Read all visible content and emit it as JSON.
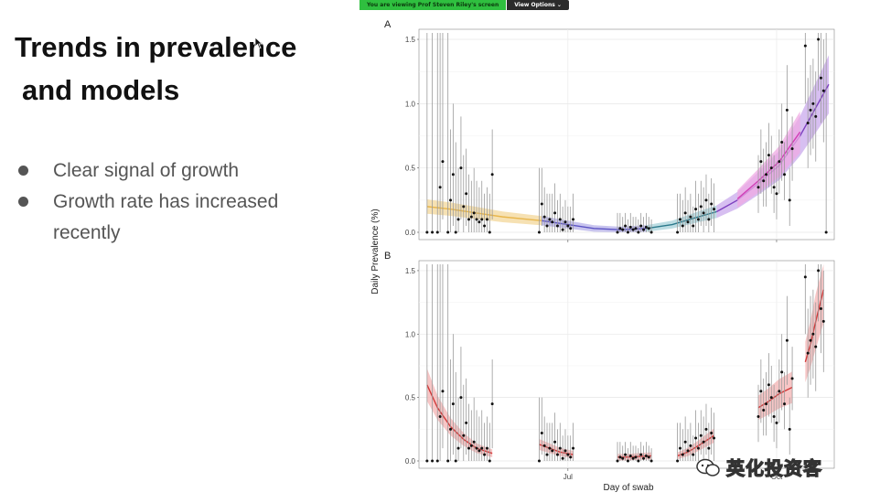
{
  "zoom": {
    "sharing_text": "You are viewing Prof Steven Riley's screen",
    "view_options_label": "View Options ⌄"
  },
  "slide": {
    "title_line1": "Trends in prevalence",
    "title_line2": "and models",
    "bullets": [
      "Clear signal of growth",
      "Growth rate has increased recently"
    ]
  },
  "watermark": {
    "text": "英化投资客"
  },
  "chart_data": [
    {
      "type": "scatter",
      "panel": "A",
      "title": "",
      "xlabel": "Day of swab",
      "ylabel": "Daily Prevalence (%)",
      "ylim": [
        0,
        1.55
      ],
      "yticks": [
        "0.0",
        "0.5",
        "1.0",
        "1.5"
      ],
      "xticks": [
        "Jul",
        "Oct"
      ],
      "x_range_days": [
        0,
        155
      ],
      "x_tick_days": [
        55,
        135
      ],
      "grid": true,
      "points": [
        [
          1,
          0.0,
          0.0,
          1.55
        ],
        [
          3,
          0.0,
          0.0,
          1.55
        ],
        [
          5,
          0.0,
          0.0,
          1.55
        ],
        [
          6,
          0.35,
          0.0,
          1.55
        ],
        [
          7,
          0.55,
          0.1,
          1.55
        ],
        [
          9,
          0.0,
          0.0,
          1.55
        ],
        [
          10,
          0.25,
          0.0,
          0.8
        ],
        [
          11,
          0.45,
          0.05,
          1.0
        ],
        [
          12,
          0.0,
          0.0,
          0.7
        ],
        [
          13,
          0.1,
          0.0,
          0.5
        ],
        [
          14,
          0.5,
          0.1,
          0.9
        ],
        [
          15,
          0.2,
          0.0,
          0.6
        ],
        [
          16,
          0.3,
          0.05,
          0.65
        ],
        [
          17,
          0.1,
          0.0,
          0.45
        ],
        [
          18,
          0.12,
          0.0,
          0.4
        ],
        [
          19,
          0.15,
          0.0,
          0.5
        ],
        [
          20,
          0.1,
          0.0,
          0.4
        ],
        [
          21,
          0.08,
          0.0,
          0.35
        ],
        [
          22,
          0.1,
          0.0,
          0.4
        ],
        [
          23,
          0.05,
          0.0,
          0.3
        ],
        [
          24,
          0.1,
          0.0,
          0.35
        ],
        [
          25,
          0.0,
          0.0,
          0.3
        ],
        [
          26,
          0.45,
          0.1,
          0.8
        ],
        [
          44,
          0.0,
          0.0,
          0.5
        ],
        [
          45,
          0.22,
          0.05,
          0.5
        ],
        [
          46,
          0.12,
          0.0,
          0.35
        ],
        [
          47,
          0.05,
          0.0,
          0.3
        ],
        [
          48,
          0.1,
          0.0,
          0.3
        ],
        [
          49,
          0.08,
          0.0,
          0.3
        ],
        [
          50,
          0.15,
          0.0,
          0.38
        ],
        [
          51,
          0.05,
          0.0,
          0.25
        ],
        [
          52,
          0.1,
          0.0,
          0.3
        ],
        [
          53,
          0.02,
          0.0,
          0.2
        ],
        [
          54,
          0.08,
          0.0,
          0.25
        ],
        [
          55,
          0.05,
          0.0,
          0.2
        ],
        [
          56,
          0.03,
          0.0,
          0.2
        ],
        [
          57,
          0.1,
          0.0,
          0.3
        ],
        [
          74,
          0.0,
          0.0,
          0.15
        ],
        [
          75,
          0.03,
          0.0,
          0.15
        ],
        [
          76,
          0.02,
          0.0,
          0.12
        ],
        [
          77,
          0.05,
          0.0,
          0.15
        ],
        [
          78,
          0.0,
          0.0,
          0.1
        ],
        [
          79,
          0.04,
          0.0,
          0.15
        ],
        [
          80,
          0.02,
          0.0,
          0.12
        ],
        [
          81,
          0.03,
          0.0,
          0.12
        ],
        [
          82,
          0.0,
          0.0,
          0.1
        ],
        [
          83,
          0.05,
          0.0,
          0.15
        ],
        [
          84,
          0.02,
          0.0,
          0.12
        ],
        [
          85,
          0.04,
          0.0,
          0.15
        ],
        [
          86,
          0.03,
          0.0,
          0.12
        ],
        [
          87,
          0.0,
          0.0,
          0.1
        ],
        [
          97,
          0.0,
          0.0,
          0.3
        ],
        [
          98,
          0.1,
          0.0,
          0.3
        ],
        [
          99,
          0.05,
          0.0,
          0.25
        ],
        [
          100,
          0.15,
          0.0,
          0.35
        ],
        [
          101,
          0.08,
          0.0,
          0.25
        ],
        [
          102,
          0.12,
          0.0,
          0.3
        ],
        [
          103,
          0.05,
          0.0,
          0.2
        ],
        [
          104,
          0.18,
          0.0,
          0.4
        ],
        [
          105,
          0.1,
          0.0,
          0.3
        ],
        [
          106,
          0.2,
          0.05,
          0.4
        ],
        [
          107,
          0.15,
          0.0,
          0.35
        ],
        [
          108,
          0.25,
          0.05,
          0.45
        ],
        [
          109,
          0.1,
          0.0,
          0.3
        ],
        [
          110,
          0.22,
          0.05,
          0.42
        ],
        [
          111,
          0.18,
          0.0,
          0.38
        ],
        [
          128,
          0.35,
          0.15,
          0.6
        ],
        [
          129,
          0.55,
          0.3,
          0.8
        ],
        [
          130,
          0.4,
          0.2,
          0.65
        ],
        [
          131,
          0.45,
          0.2,
          0.7
        ],
        [
          132,
          0.6,
          0.35,
          0.85
        ],
        [
          133,
          0.5,
          0.3,
          0.75
        ],
        [
          134,
          0.35,
          0.15,
          0.6
        ],
        [
          135,
          0.3,
          0.1,
          0.55
        ],
        [
          136,
          0.55,
          0.3,
          0.8
        ],
        [
          137,
          0.7,
          0.4,
          1.0
        ],
        [
          138,
          0.45,
          0.25,
          0.7
        ],
        [
          139,
          0.95,
          0.6,
          1.3
        ],
        [
          140,
          0.25,
          0.05,
          0.5
        ],
        [
          141,
          0.65,
          0.4,
          0.9
        ],
        [
          146,
          1.45,
          1.0,
          1.55
        ],
        [
          147,
          0.85,
          0.5,
          1.2
        ],
        [
          148,
          0.95,
          0.6,
          1.3
        ],
        [
          149,
          1.0,
          0.65,
          1.35
        ],
        [
          150,
          0.9,
          0.55,
          1.25
        ],
        [
          151,
          1.5,
          1.1,
          1.55
        ],
        [
          152,
          1.2,
          0.85,
          1.55
        ],
        [
          153,
          1.1,
          0.7,
          1.5
        ],
        [
          154,
          0.0,
          0.0,
          1.55
        ]
      ],
      "fit_segments": [
        {
          "color": "#e8b64c",
          "band": "#f3d79a",
          "x": [
            1,
            10,
            20,
            30,
            40,
            45
          ],
          "y": [
            0.2,
            0.18,
            0.15,
            0.12,
            0.1,
            0.09
          ]
        },
        {
          "color": "#5b53c4",
          "band": "#b5b0e8",
          "x": [
            45,
            55,
            65,
            75,
            85
          ],
          "y": [
            0.09,
            0.06,
            0.03,
            0.02,
            0.03
          ]
        },
        {
          "color": "#2c7a8c",
          "band": "#a7d2da",
          "x": [
            85,
            95,
            105,
            112
          ],
          "y": [
            0.03,
            0.06,
            0.12,
            0.16
          ]
        },
        {
          "color": "#7d3fbf",
          "band": "#caa9ec",
          "x": [
            112,
            120,
            128,
            136,
            144,
            155
          ],
          "y": [
            0.16,
            0.25,
            0.38,
            0.52,
            0.75,
            1.15
          ]
        },
        {
          "color": "#d13fb7",
          "band": "#efa9e3",
          "x": [
            120,
            128,
            136,
            144
          ],
          "y": [
            0.26,
            0.4,
            0.55,
            0.78
          ]
        }
      ]
    },
    {
      "type": "scatter",
      "panel": "B",
      "title": "",
      "xlabel": "Day of swab",
      "ylabel": "Daily Prevalence (%)",
      "ylim": [
        0,
        1.55
      ],
      "yticks": [
        "0.0",
        "0.5",
        "1.0",
        "1.5"
      ],
      "xticks": [
        "Jul",
        "Oct"
      ],
      "x_range_days": [
        0,
        155
      ],
      "x_tick_days": [
        55,
        135
      ],
      "grid": true,
      "points": [
        [
          1,
          0.0,
          0.0,
          1.55
        ],
        [
          3,
          0.0,
          0.0,
          1.55
        ],
        [
          5,
          0.0,
          0.0,
          1.55
        ],
        [
          6,
          0.35,
          0.0,
          1.55
        ],
        [
          7,
          0.55,
          0.1,
          1.55
        ],
        [
          9,
          0.0,
          0.0,
          1.55
        ],
        [
          10,
          0.25,
          0.0,
          0.8
        ],
        [
          11,
          0.45,
          0.05,
          1.0
        ],
        [
          12,
          0.0,
          0.0,
          0.7
        ],
        [
          13,
          0.1,
          0.0,
          0.5
        ],
        [
          14,
          0.5,
          0.1,
          0.9
        ],
        [
          15,
          0.2,
          0.0,
          0.6
        ],
        [
          16,
          0.3,
          0.05,
          0.65
        ],
        [
          17,
          0.1,
          0.0,
          0.45
        ],
        [
          18,
          0.12,
          0.0,
          0.4
        ],
        [
          19,
          0.15,
          0.0,
          0.5
        ],
        [
          20,
          0.1,
          0.0,
          0.4
        ],
        [
          21,
          0.08,
          0.0,
          0.35
        ],
        [
          22,
          0.1,
          0.0,
          0.4
        ],
        [
          23,
          0.05,
          0.0,
          0.3
        ],
        [
          24,
          0.1,
          0.0,
          0.35
        ],
        [
          25,
          0.0,
          0.0,
          0.3
        ],
        [
          26,
          0.45,
          0.1,
          0.8
        ],
        [
          44,
          0.0,
          0.0,
          0.5
        ],
        [
          45,
          0.22,
          0.05,
          0.5
        ],
        [
          46,
          0.12,
          0.0,
          0.35
        ],
        [
          47,
          0.05,
          0.0,
          0.3
        ],
        [
          48,
          0.1,
          0.0,
          0.3
        ],
        [
          49,
          0.08,
          0.0,
          0.3
        ],
        [
          50,
          0.15,
          0.0,
          0.38
        ],
        [
          51,
          0.05,
          0.0,
          0.25
        ],
        [
          52,
          0.1,
          0.0,
          0.3
        ],
        [
          53,
          0.02,
          0.0,
          0.2
        ],
        [
          54,
          0.08,
          0.0,
          0.25
        ],
        [
          55,
          0.05,
          0.0,
          0.2
        ],
        [
          56,
          0.03,
          0.0,
          0.2
        ],
        [
          57,
          0.1,
          0.0,
          0.3
        ],
        [
          74,
          0.0,
          0.0,
          0.15
        ],
        [
          75,
          0.03,
          0.0,
          0.15
        ],
        [
          76,
          0.02,
          0.0,
          0.12
        ],
        [
          77,
          0.05,
          0.0,
          0.15
        ],
        [
          78,
          0.0,
          0.0,
          0.1
        ],
        [
          79,
          0.04,
          0.0,
          0.15
        ],
        [
          80,
          0.02,
          0.0,
          0.12
        ],
        [
          81,
          0.03,
          0.0,
          0.12
        ],
        [
          82,
          0.0,
          0.0,
          0.1
        ],
        [
          83,
          0.05,
          0.0,
          0.15
        ],
        [
          84,
          0.02,
          0.0,
          0.12
        ],
        [
          85,
          0.04,
          0.0,
          0.15
        ],
        [
          86,
          0.03,
          0.0,
          0.12
        ],
        [
          87,
          0.0,
          0.0,
          0.1
        ],
        [
          97,
          0.0,
          0.0,
          0.3
        ],
        [
          98,
          0.1,
          0.0,
          0.3
        ],
        [
          99,
          0.05,
          0.0,
          0.25
        ],
        [
          100,
          0.15,
          0.0,
          0.35
        ],
        [
          101,
          0.08,
          0.0,
          0.25
        ],
        [
          102,
          0.12,
          0.0,
          0.3
        ],
        [
          103,
          0.05,
          0.0,
          0.2
        ],
        [
          104,
          0.18,
          0.0,
          0.4
        ],
        [
          105,
          0.1,
          0.0,
          0.3
        ],
        [
          106,
          0.2,
          0.05,
          0.4
        ],
        [
          107,
          0.15,
          0.0,
          0.35
        ],
        [
          108,
          0.25,
          0.05,
          0.45
        ],
        [
          109,
          0.1,
          0.0,
          0.3
        ],
        [
          110,
          0.22,
          0.05,
          0.42
        ],
        [
          111,
          0.18,
          0.0,
          0.38
        ],
        [
          128,
          0.35,
          0.15,
          0.6
        ],
        [
          129,
          0.55,
          0.3,
          0.8
        ],
        [
          130,
          0.4,
          0.2,
          0.65
        ],
        [
          131,
          0.45,
          0.2,
          0.7
        ],
        [
          132,
          0.6,
          0.35,
          0.85
        ],
        [
          133,
          0.5,
          0.3,
          0.75
        ],
        [
          134,
          0.35,
          0.15,
          0.6
        ],
        [
          135,
          0.3,
          0.1,
          0.55
        ],
        [
          136,
          0.55,
          0.3,
          0.8
        ],
        [
          137,
          0.7,
          0.4,
          1.0
        ],
        [
          138,
          0.45,
          0.25,
          0.7
        ],
        [
          139,
          0.95,
          0.6,
          1.3
        ],
        [
          140,
          0.25,
          0.05,
          0.5
        ],
        [
          141,
          0.65,
          0.4,
          0.9
        ],
        [
          146,
          1.45,
          1.0,
          1.55
        ],
        [
          147,
          0.85,
          0.5,
          1.2
        ],
        [
          148,
          0.95,
          0.6,
          1.3
        ],
        [
          149,
          1.0,
          0.65,
          1.35
        ],
        [
          150,
          0.9,
          0.55,
          1.25
        ],
        [
          151,
          1.5,
          1.1,
          1.55
        ],
        [
          152,
          1.2,
          0.85,
          1.55
        ],
        [
          153,
          1.1,
          0.7,
          1.5
        ]
      ],
      "fit_segments": [
        {
          "color": "#d23a3a",
          "band": "#f4b3b3",
          "x": [
            1,
            5,
            10,
            15,
            20,
            26
          ],
          "y": [
            0.6,
            0.42,
            0.27,
            0.17,
            0.1,
            0.06
          ]
        },
        {
          "color": "#d23a3a",
          "band": "#f4b3b3",
          "x": [
            44,
            48,
            52,
            57
          ],
          "y": [
            0.13,
            0.1,
            0.07,
            0.05
          ]
        },
        {
          "color": "#d23a3a",
          "band": "#f4b3b3",
          "x": [
            74,
            78,
            82,
            87
          ],
          "y": [
            0.03,
            0.03,
            0.035,
            0.04
          ]
        },
        {
          "color": "#d23a3a",
          "band": "#f4b3b3",
          "x": [
            97,
            101,
            105,
            111
          ],
          "y": [
            0.04,
            0.07,
            0.12,
            0.2
          ]
        },
        {
          "color": "#d23a3a",
          "band": "#f4b3b3",
          "x": [
            128,
            132,
            136,
            141
          ],
          "y": [
            0.42,
            0.47,
            0.53,
            0.58
          ]
        },
        {
          "color": "#d23a3a",
          "band": "#f4b3b3",
          "x": [
            146,
            148,
            150,
            153
          ],
          "y": [
            0.78,
            0.92,
            1.1,
            1.35
          ]
        }
      ]
    }
  ]
}
